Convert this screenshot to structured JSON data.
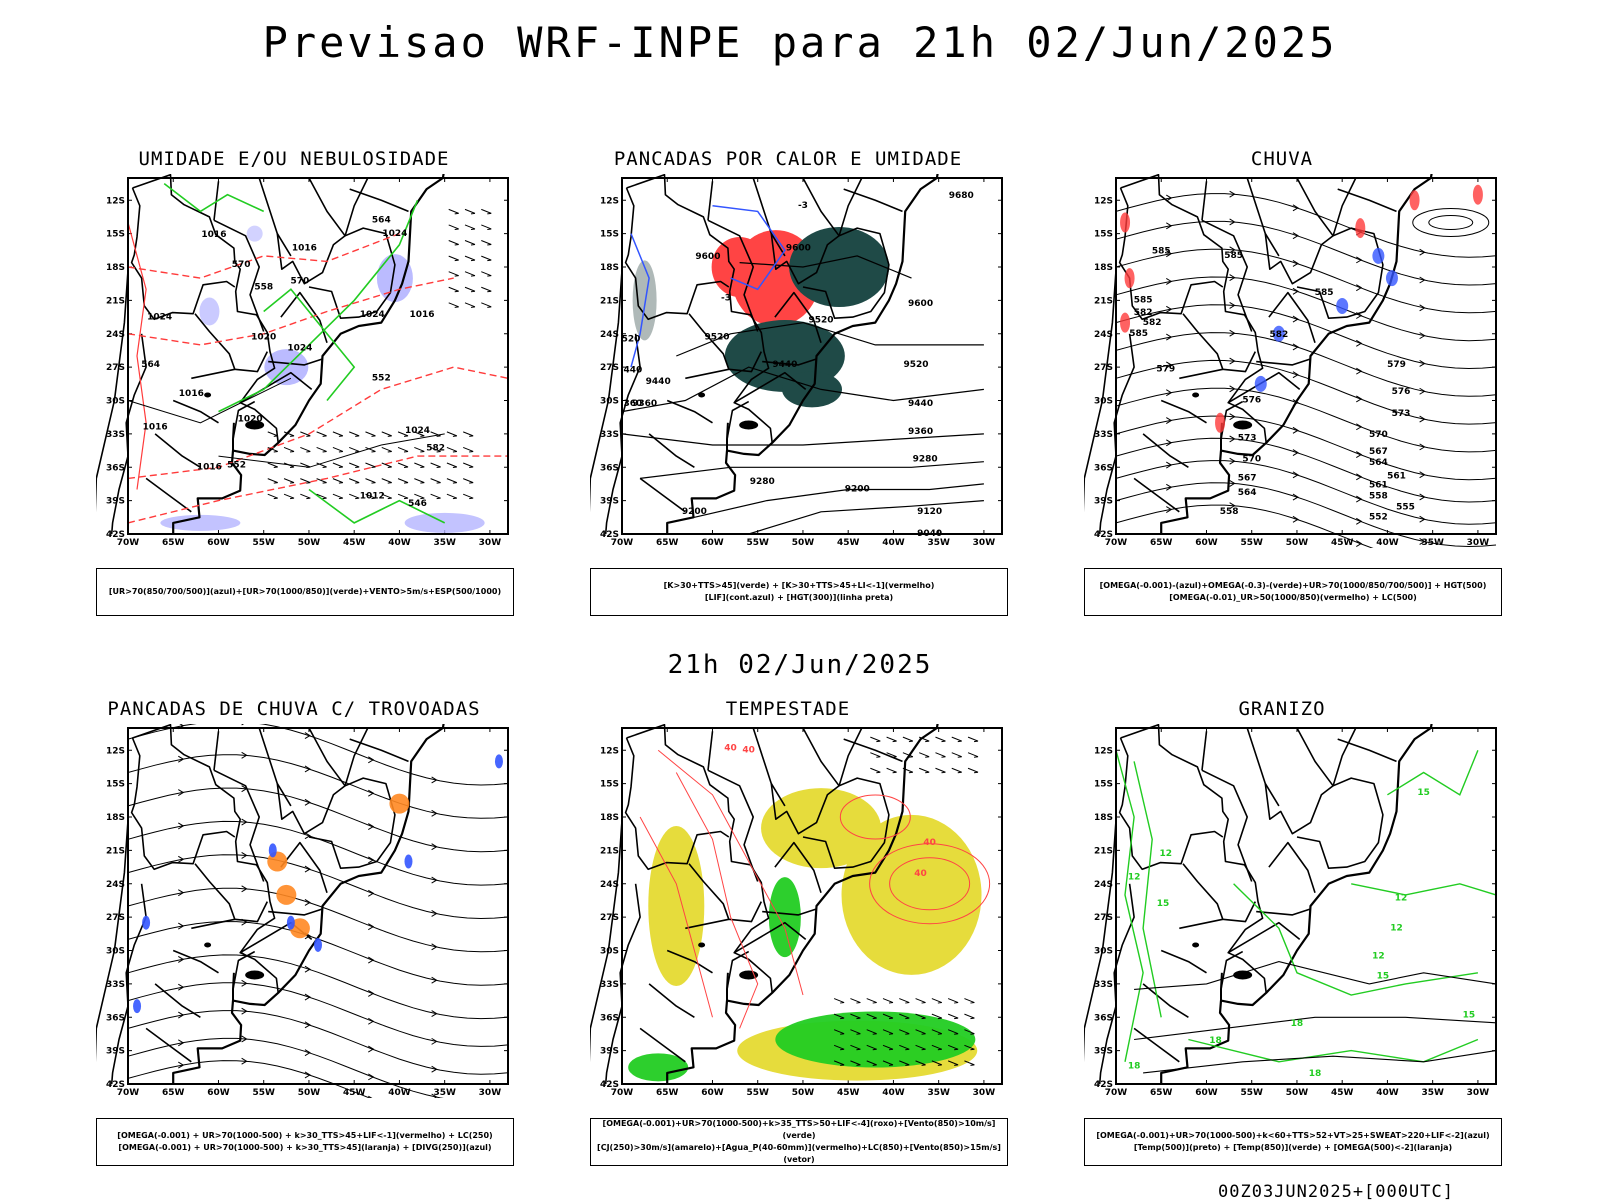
{
  "main_title": "Previsao WRF-INPE  para 21h 02/Jun/2025",
  "mid_date": "21h 02/Jun/2025",
  "footer_stamp": "00Z03JUN2025+[000UTC]",
  "axes": {
    "lat_labels": [
      "12S",
      "15S",
      "18S",
      "21S",
      "24S",
      "27S",
      "30S",
      "33S",
      "36S",
      "39S",
      "42S"
    ],
    "lon_labels": [
      "70W",
      "65W",
      "60W",
      "55W",
      "50W",
      "45W",
      "40W",
      "35W",
      "30W"
    ]
  },
  "colors": {
    "green": "#22cc22",
    "red": "#ff3b3b",
    "lavender": "#b4b4ff",
    "blue": "#3355ff",
    "dark_teal": "#1f4a47",
    "orange": "#ff8822",
    "yellow": "#e6dc3c",
    "black": "#000000"
  },
  "panels": [
    {
      "title": "UMIDADE E/OU NEBULOSIDADE",
      "caption": [
        "[UR>70(850/700/500)](azul)+[UR>70(1000/850)](verde)+VENTO>5m/s+ESP(500/1000)"
      ],
      "contour_labels": [
        "1016",
        "1016",
        "1024",
        "1024",
        "1020",
        "1024",
        "1024",
        "1016",
        "1016",
        "1020",
        "1016",
        "1024",
        "1016",
        "1012",
        "570",
        "564",
        "558",
        "552",
        "582",
        "564",
        "552",
        "546",
        "570"
      ]
    },
    {
      "title": "PANCADAS POR CALOR E UMIDADE",
      "caption": [
        "[K>30+TTS>45](verde) + [K>30+TTS>45+LI<-1](vermelho)",
        "[LIF](cont.azul) + [HGT(300)](linha preta)"
      ],
      "contour_labels": [
        "9680",
        "9600",
        "9600",
        "9600",
        "9520",
        "9520",
        "9520",
        "9440",
        "9440",
        "9440",
        "9360",
        "9360",
        "9280",
        "9280",
        "9200",
        "9200",
        "9120",
        "9040",
        "-3",
        "-3",
        "520",
        "440",
        "360"
      ]
    },
    {
      "title": "CHUVA",
      "caption": [
        "[OMEGA(-0.001)-(azul)+OMEGA(-0.3)-(verde)+UR>70(1000/850/700/500)] + HGT(500)",
        "[OMEGA(-0.01)_UR>50(1000/850)(vermelho) + LC(500)"
      ],
      "contour_labels": [
        "585",
        "585",
        "585",
        "582",
        "585",
        "582",
        "585",
        "582",
        "579",
        "576",
        "573",
        "570",
        "567",
        "564",
        "561",
        "558",
        "555",
        "552",
        "579",
        "576",
        "573",
        "570",
        "567",
        "564",
        "561",
        "558"
      ]
    },
    {
      "title": "PANCADAS DE CHUVA C/ TROVOADAS",
      "caption": [
        "[OMEGA(-0.001) + UR>70(1000-500) + k>30_TTS>45+LIF<-1](vermelho) + LC(250)",
        "[OMEGA(-0.001) + UR>70(1000-500) + k>30_TTS>45](laranja) + [DIVG(250)](azul)"
      ],
      "contour_labels": []
    },
    {
      "title": "TEMPESTADE",
      "caption": [
        "[OMEGA(-0.001)+UR>70(1000-500)+k>35_TTS>50+LIF<-4](roxo)+[Vento(850)>10m/s](verde)",
        "[CJ(250)>30m/s](amarelo)+[Agua_P(40-60mm)](vermelho)+LC(850)+[Vento(850)>15m/s](vetor)"
      ],
      "contour_labels": [
        "40",
        "40",
        "40",
        "40"
      ]
    },
    {
      "title": "GRANIZO",
      "caption": [
        "[OMEGA(-0.001)+UR>70(1000-500)+k<60+TTS>52+VT>25+SWEAT>220+LIF<-2](azul)",
        "[Temp(500)](preto) + [Temp(850)](verde) + [OMEGA(500)<-2](laranja)"
      ],
      "contour_labels": [
        "12",
        "12",
        "15",
        "15",
        "12",
        "12",
        "12",
        "15",
        "15",
        "18",
        "18",
        "18",
        "18"
      ]
    }
  ]
}
